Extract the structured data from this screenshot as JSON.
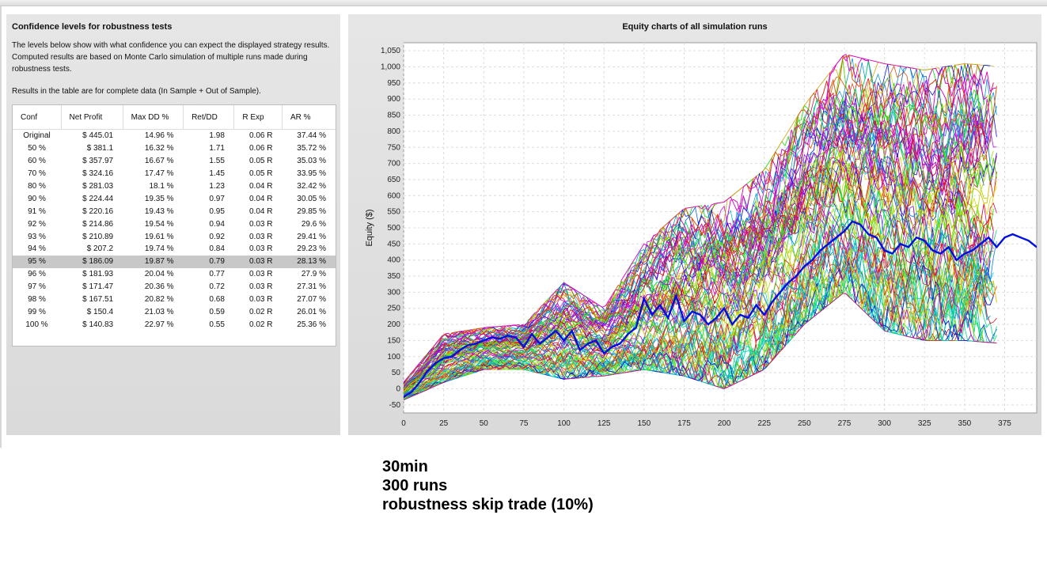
{
  "left_panel": {
    "title": "Confidence levels for robustness tests",
    "description": "The levels below show with what confidence you can expect the displayed strategy results. Computed results are based on Monte Carlo simulation of multiple runs made during robustness tests.",
    "note": "Results in the table are for complete data (In Sample + Out of Sample).",
    "table": {
      "headers": [
        "Conf",
        "Net Profit",
        "Max DD %",
        "Ret/DD",
        "R Exp",
        "AR %"
      ],
      "selected_row": 10,
      "rows": [
        [
          "Original",
          "$ 445.01",
          "14.96 %",
          "1.98",
          "0.06 R",
          "37.44 %"
        ],
        [
          "50 %",
          "$ 381.1",
          "16.32 %",
          "1.71",
          "0.06 R",
          "35.72 %"
        ],
        [
          "60 %",
          "$ 357.97",
          "16.67 %",
          "1.55",
          "0.05 R",
          "35.03 %"
        ],
        [
          "70 %",
          "$ 324.16",
          "17.47 %",
          "1.45",
          "0.05 R",
          "33.95 %"
        ],
        [
          "80 %",
          "$ 281.03",
          "18.1 %",
          "1.23",
          "0.04 R",
          "32.42 %"
        ],
        [
          "90 %",
          "$ 224.44",
          "19.35 %",
          "0.97",
          "0.04 R",
          "30.05 %"
        ],
        [
          "91 %",
          "$ 220.16",
          "19.43 %",
          "0.95",
          "0.04 R",
          "29.85 %"
        ],
        [
          "92 %",
          "$ 214.86",
          "19.54 %",
          "0.94",
          "0.03 R",
          "29.6 %"
        ],
        [
          "93 %",
          "$ 210.89",
          "19.61 %",
          "0.92",
          "0.03 R",
          "29.41 %"
        ],
        [
          "94 %",
          "$ 207.2",
          "19.74 %",
          "0.84",
          "0.03 R",
          "29.23 %"
        ],
        [
          "95 %",
          "$ 186.09",
          "19.87 %",
          "0.79",
          "0.03 R",
          "28.13 %"
        ],
        [
          "96 %",
          "$ 181.93",
          "20.04 %",
          "0.77",
          "0.03 R",
          "27.9 %"
        ],
        [
          "97 %",
          "$ 171.47",
          "20.36 %",
          "0.72",
          "0.03 R",
          "27.31 %"
        ],
        [
          "98 %",
          "$ 167.51",
          "20.82 %",
          "0.68",
          "0.03 R",
          "27.07 %"
        ],
        [
          "99 %",
          "$ 150.4",
          "21.03 %",
          "0.59",
          "0.02 R",
          "26.01 %"
        ],
        [
          "100 %",
          "$ 140.83",
          "22.97 %",
          "0.55",
          "0.02 R",
          "25.36 %"
        ]
      ]
    }
  },
  "chart_panel": {
    "title": "Equity charts of all simulation runs"
  },
  "chart_data": {
    "type": "line",
    "title": "Equity charts of all simulation runs",
    "xlabel": "",
    "ylabel": "Equity ($)",
    "xlim": [
      0,
      395
    ],
    "ylim": [
      -75,
      1075
    ],
    "x_ticks": [
      0,
      25,
      50,
      75,
      100,
      125,
      150,
      175,
      200,
      225,
      250,
      275,
      300,
      325,
      350,
      375
    ],
    "y_ticks": [
      -50,
      0,
      50,
      100,
      150,
      200,
      250,
      300,
      350,
      400,
      450,
      500,
      550,
      600,
      650,
      700,
      750,
      800,
      850,
      900,
      950,
      1000,
      1050
    ],
    "grid": true,
    "legend": "none",
    "highlighted_series": {
      "name": "",
      "color": "#0010e0",
      "x": [
        0,
        5,
        10,
        15,
        20,
        25,
        30,
        35,
        40,
        45,
        50,
        55,
        60,
        65,
        70,
        75,
        80,
        85,
        90,
        95,
        100,
        105,
        110,
        115,
        120,
        125,
        130,
        135,
        140,
        145,
        150,
        155,
        160,
        165,
        170,
        175,
        180,
        185,
        190,
        195,
        200,
        205,
        210,
        215,
        220,
        225,
        230,
        235,
        240,
        245,
        250,
        255,
        260,
        265,
        270,
        275,
        280,
        285,
        290,
        295,
        300,
        305,
        310,
        315,
        320,
        325,
        330,
        335,
        340,
        345,
        350,
        355,
        360,
        365,
        370,
        375,
        380,
        385,
        390,
        395
      ],
      "y": [
        -25,
        -10,
        20,
        55,
        80,
        95,
        100,
        120,
        135,
        140,
        150,
        160,
        155,
        165,
        160,
        130,
        170,
        140,
        160,
        180,
        150,
        180,
        120,
        140,
        150,
        110,
        130,
        140,
        170,
        190,
        280,
        230,
        260,
        220,
        290,
        210,
        240,
        230,
        200,
        220,
        250,
        200,
        230,
        220,
        260,
        230,
        270,
        300,
        330,
        350,
        380,
        400,
        430,
        450,
        470,
        490,
        520,
        510,
        480,
        470,
        430,
        420,
        450,
        440,
        470,
        460,
        430,
        420,
        440,
        400,
        420,
        430,
        450,
        470,
        440,
        470,
        480,
        470,
        460,
        440
      ]
    },
    "band": {
      "series_count": 300,
      "x": [
        0,
        25,
        50,
        75,
        100,
        125,
        150,
        175,
        200,
        225,
        250,
        275,
        300,
        325,
        350,
        375
      ],
      "lower": [
        -35,
        20,
        60,
        60,
        30,
        40,
        60,
        40,
        0,
        60,
        200,
        300,
        180,
        150,
        150,
        140
      ],
      "upper": [
        20,
        170,
        190,
        200,
        330,
        250,
        450,
        560,
        580,
        680,
        880,
        1040,
        1010,
        990,
        1010,
        1000
      ]
    }
  },
  "notes": {
    "line1": "30min",
    "line2": "300 runs",
    "line3": "robustness skip trade (10%)"
  }
}
